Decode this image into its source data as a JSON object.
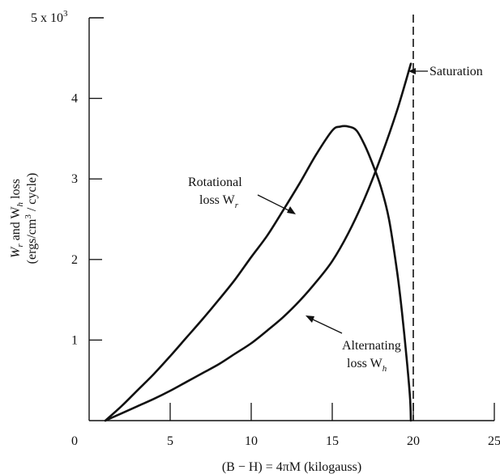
{
  "chart_data": {
    "type": "line",
    "y_scale_note": "5 x 10",
    "y_scale_exp": "3",
    "xlabel": "(B − H) = 4πM (kilogauss)",
    "ylabel_line1": "W",
    "ylabel_line1_sub1": "r",
    "ylabel_line1_mid": " and W",
    "ylabel_line1_sub2": "h",
    "ylabel_line1_end": " loss",
    "ylabel_line2": "(ergs/cm",
    "ylabel_line2_sup": "3",
    "ylabel_line2_end": " / cycle)",
    "xlim": [
      0,
      25
    ],
    "ylim": [
      0,
      5000
    ],
    "x_ticks": [
      "0",
      "5",
      "10",
      "15",
      "20",
      "25"
    ],
    "x_tick_values": [
      0,
      5,
      10,
      15,
      20,
      25
    ],
    "y_ticks": [
      "1",
      "2",
      "3",
      "4"
    ],
    "y_tick_values": [
      1000,
      2000,
      3000,
      4000
    ],
    "saturation_x": 20,
    "annotations": {
      "saturation": "Saturation",
      "rotational_1": "Rotational",
      "rotational_2": "loss W",
      "rotational_sub": "r",
      "alternating_1": "Alternating",
      "alternating_2": "loss W",
      "alternating_sub": "h"
    },
    "series": [
      {
        "x": [
          1.0,
          2.0,
          3.0,
          4.0,
          5.0,
          6.0,
          7.0,
          8.0,
          9.0,
          10.0,
          11.0,
          12.0,
          13.0,
          14.0,
          15.0,
          15.5,
          16.0,
          16.5,
          17.0,
          17.5,
          18.0,
          18.5,
          19.0,
          19.3,
          19.6,
          19.8,
          19.85
        ],
        "values": [
          0,
          180,
          380,
          580,
          800,
          1030,
          1260,
          1500,
          1750,
          2030,
          2300,
          2620,
          2950,
          3300,
          3600,
          3650,
          3650,
          3600,
          3420,
          3180,
          2900,
          2500,
          1850,
          1350,
          750,
          280,
          0
        ]
      },
      {
        "x": [
          1.0,
          2.0,
          3.0,
          4.0,
          5.0,
          6.0,
          7.0,
          8.0,
          9.0,
          10.0,
          11.0,
          12.0,
          13.0,
          14.0,
          15.0,
          16.0,
          17.0,
          18.0,
          19.0,
          19.85
        ],
        "values": [
          0,
          90,
          180,
          270,
          370,
          480,
          590,
          700,
          830,
          960,
          1120,
          1290,
          1490,
          1720,
          1980,
          2330,
          2760,
          3270,
          3850,
          4430
        ]
      }
    ]
  }
}
